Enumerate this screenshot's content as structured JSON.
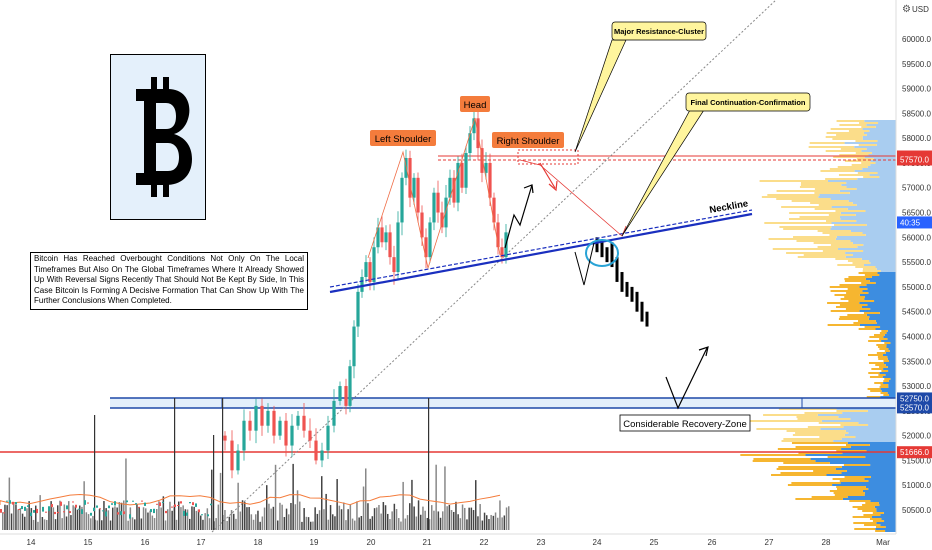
{
  "chart_data": {
    "type": "candlestick",
    "symbol_logo": "bitcoin-logo",
    "currency": "USD",
    "y_ticks": [
      50500,
      51000,
      51500,
      52000,
      52500,
      53000,
      53500,
      54000,
      54500,
      55000,
      55500,
      56000,
      56500,
      57000,
      57500,
      58000,
      58500,
      59000,
      59500,
      60000
    ],
    "y_tick_labels": [
      "50500.0",
      "51000.0",
      "51500.0",
      "52000.0",
      "52500.0",
      "53000.0",
      "53500.0",
      "54000.0",
      "54500.0",
      "55000.0",
      "55500.0",
      "56000.0",
      "56500.0",
      "57000.0",
      "57500.0",
      "58000.0",
      "58500.0",
      "59000.0",
      "59500.0",
      "60000.0"
    ],
    "x_labels": [
      "14",
      "15",
      "16",
      "17",
      "18",
      "19",
      "20",
      "21",
      "22",
      "23",
      "24",
      "25",
      "26",
      "27",
      "28",
      "Mar"
    ],
    "price_tags": [
      {
        "label": "57630.0",
        "color": "#e53935"
      },
      {
        "label": "57570.0",
        "color": "#e53935"
      },
      {
        "label": "40:35",
        "color": "#2962ff"
      },
      {
        "label": "52750.0",
        "color": "#1e49a8"
      },
      {
        "label": "52570.0",
        "color": "#1e49a8"
      },
      {
        "label": "51666.0",
        "color": "#e53935"
      }
    ],
    "levels": {
      "resistance_top": 57630,
      "resistance_bottom": 57570,
      "recovery_top": 52750,
      "recovery_bottom": 52570,
      "support": 51666
    },
    "annotations": {
      "left_shoulder": "Left Shoulder",
      "head": "Head",
      "right_shoulder": "Right Shoulder",
      "neckline": "Neckline",
      "major_resistance": "Major Resistance-Cluster",
      "final_continuation": "Final Continuation-Confirmation",
      "recovery_zone": "Considerable Recovery-Zone"
    },
    "description": "Bitcoin Has Reached Overbought Conditions Not Only On The Local Timeframes But Also On The Global Timeframes Where It Already Showed Up With Reversal Signs Recently That Should Not Be Kept By Side, In This Case Bitcoin Is Forming A Decisive Formation That Can Show Up With The Further Conclusions When Completed.",
    "colors": {
      "up": "#26a69a",
      "down": "#ef5350",
      "neckline": "#1a2fbf",
      "resistance": "#e53935",
      "recovery_zone_fill": "#e3effb",
      "label_orange": "#f47c3c",
      "callout_yellow": "#fff59d"
    }
  }
}
